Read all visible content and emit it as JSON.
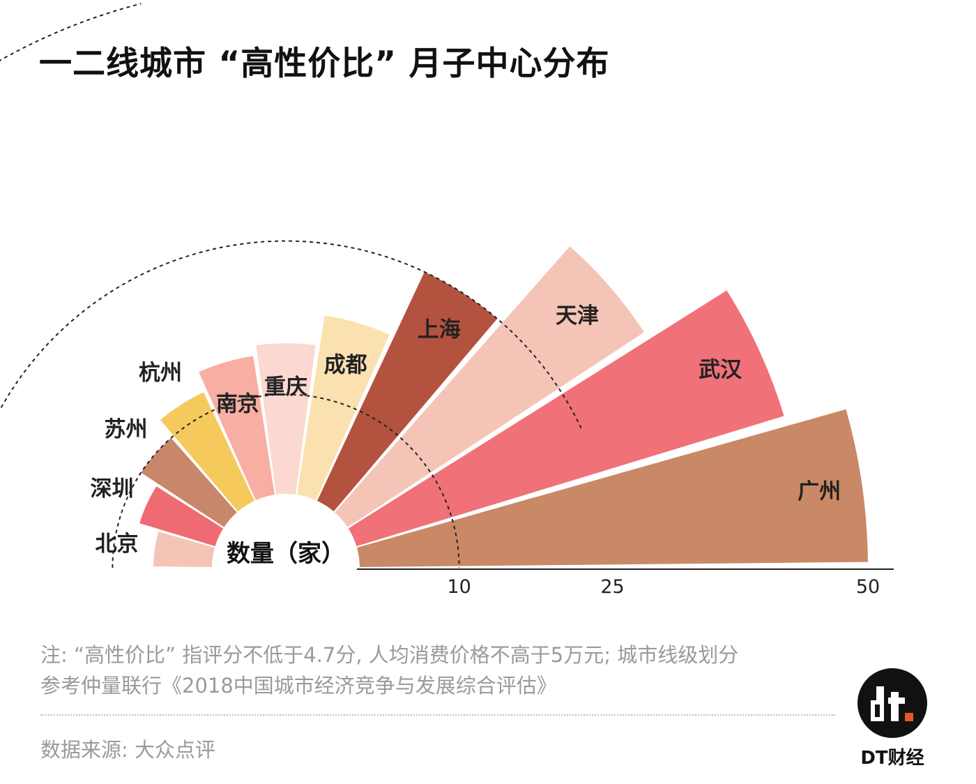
{
  "title": "一二线城市 “高性价比” 月子中心分布",
  "chart_data": {
    "type": "radial-bar",
    "title": "一二线城市 “高性价比” 月子中心分布",
    "value_label": "数量（家）",
    "radial_ticks": [
      10,
      25,
      50
    ],
    "categories": [
      "北京",
      "深圳",
      "苏州",
      "杭州",
      "南京",
      "重庆",
      "成都",
      "上海",
      "天津",
      "武汉",
      "广州"
    ],
    "values": [
      6,
      8,
      10,
      12,
      14,
      15,
      18,
      25,
      35,
      44,
      50
    ],
    "colors": [
      "#f4c5b7",
      "#ef6b73",
      "#c8876a",
      "#f5c95c",
      "#f8aea3",
      "#fbd9d0",
      "#fbe0b0",
      "#b3533f",
      "#f4c5b7",
      "#f07178",
      "#c98866"
    ],
    "grid": "dashed arcs at 10, 25 and 50"
  },
  "notes": {
    "line1": "注: “高性价比” 指评分不低于4.7分, 人均消费价格不高于5万元; 城市线级划分",
    "line2": "参考仲量联行《2018中国城市经济竞争与发展综合评估》"
  },
  "source": "数据来源: 大众点评",
  "brand": {
    "logo": "dt",
    "name": "DT财经",
    "logo_color": "#111111",
    "accent": "#e8572a"
  }
}
